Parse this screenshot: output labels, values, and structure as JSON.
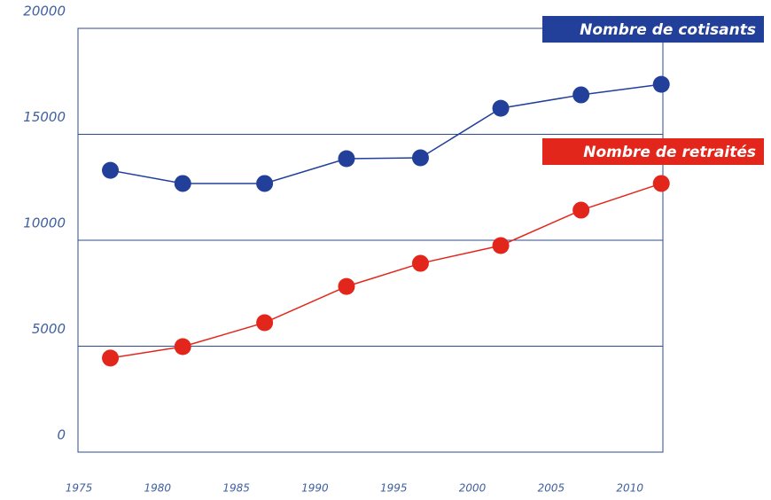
{
  "chart_data": {
    "type": "line",
    "x": [
      1977,
      1981.6,
      1986.8,
      1992,
      1996.7,
      2001.8,
      2006.9,
      2012
    ],
    "series": [
      {
        "name": "Nombre de cotisants",
        "color": "#22409a",
        "values": [
          13300,
          12680,
          12680,
          13850,
          13890,
          16230,
          16860,
          17360
        ]
      },
      {
        "name": "Nombre de retraités",
        "color": "#e3261b",
        "values": [
          4440,
          4980,
          6110,
          7820,
          8910,
          9750,
          11420,
          12680
        ]
      }
    ],
    "xlim": [
      1975,
      2012.1
    ],
    "xticks": [
      1975,
      1980,
      1985,
      1990,
      1995,
      2000,
      2005,
      2010
    ],
    "ylim": [
      0,
      20000
    ],
    "yticks": [
      0,
      5000,
      10000,
      15000,
      20000
    ],
    "grid": true
  }
}
